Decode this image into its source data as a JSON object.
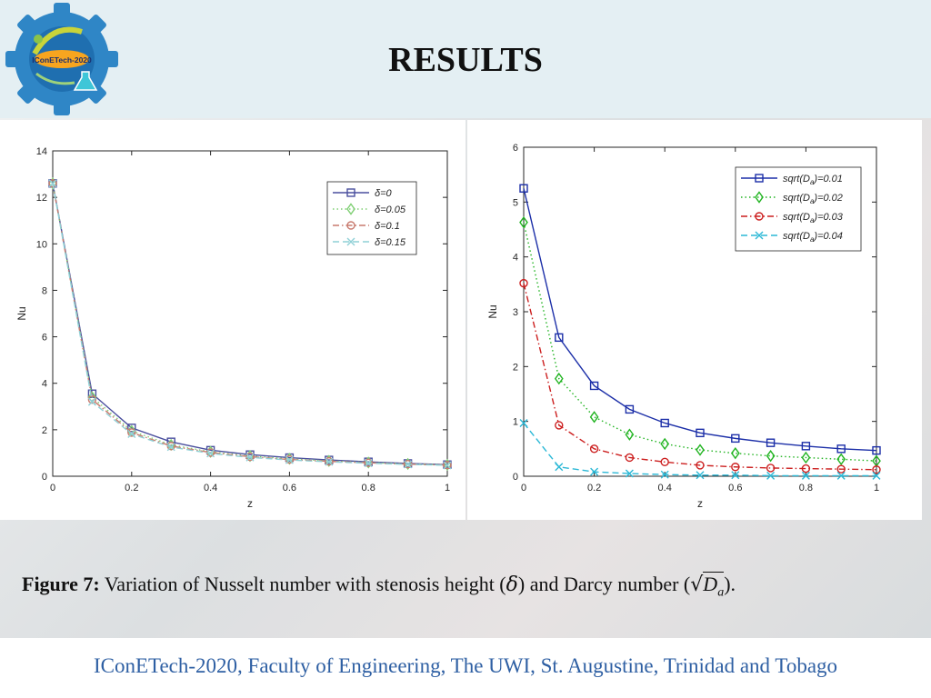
{
  "header": {
    "title": "RESULTS",
    "logo_text": "IConETech-2020"
  },
  "caption": {
    "label": "Figure 7:",
    "text_before": "Variation of Nusselt number with stenosis height (",
    "delta_symbol": "δ",
    "text_middle": ") and Darcy number (",
    "darcy_symbol": "D",
    "darcy_sub": "a",
    "text_after": ")."
  },
  "footer": {
    "text": "IConETech-2020, Faculty of Engineering, The UWI, St. Augustine, Trinidad and Tobago"
  },
  "colors": {
    "header_bg": "#e4eff3",
    "footer_text": "#2e5fa3",
    "series_blue": "#1c2fa8",
    "series_green": "#22b422",
    "series_red": "#cc1f1f",
    "series_cyan": "#2bb8d6"
  },
  "chart_data": [
    {
      "type": "line",
      "title": "",
      "xlabel": "z",
      "ylabel": "Nu",
      "xlim": [
        0,
        1
      ],
      "ylim": [
        0,
        14
      ],
      "xticks": [
        0,
        0.2,
        0.4,
        0.6,
        0.8,
        1
      ],
      "xtick_labels": [
        "0",
        "0.2",
        "0.4",
        "0.6",
        "0.8",
        "1"
      ],
      "yticks": [
        0,
        2,
        4,
        6,
        8,
        10,
        12,
        14
      ],
      "ytick_labels": [
        "0",
        "2",
        "4",
        "6",
        "8",
        "10",
        "12",
        "14"
      ],
      "legend_position": "top-right",
      "x": [
        0,
        0.1,
        0.2,
        0.3,
        0.4,
        0.5,
        0.6,
        0.7,
        0.8,
        0.9,
        1.0
      ],
      "series": [
        {
          "name": "δ=0",
          "color": "#4a4f9e",
          "marker": "square",
          "dash": "solid",
          "values": [
            12.6,
            3.55,
            2.08,
            1.48,
            1.12,
            0.93,
            0.8,
            0.7,
            0.62,
            0.55,
            0.5
          ]
        },
        {
          "name": "δ=0.05",
          "color": "#7fcf73",
          "marker": "diamond",
          "dash": "dotted",
          "values": [
            12.6,
            3.4,
            1.95,
            1.35,
            1.05,
            0.87,
            0.75,
            0.66,
            0.59,
            0.53,
            0.49
          ]
        },
        {
          "name": "δ=0.1",
          "color": "#c87a6e",
          "marker": "circle",
          "dash": "dashdot",
          "values": [
            12.6,
            3.3,
            1.88,
            1.3,
            1.02,
            0.84,
            0.72,
            0.64,
            0.58,
            0.52,
            0.48
          ]
        },
        {
          "name": "δ=0.15",
          "color": "#8fd0d6",
          "marker": "x",
          "dash": "dashed",
          "values": [
            12.6,
            3.2,
            1.82,
            1.26,
            0.98,
            0.81,
            0.7,
            0.62,
            0.56,
            0.51,
            0.47
          ]
        }
      ]
    },
    {
      "type": "line",
      "title": "",
      "xlabel": "z",
      "ylabel": "Nu",
      "xlim": [
        0,
        1
      ],
      "ylim": [
        0,
        6
      ],
      "xticks": [
        0,
        0.2,
        0.4,
        0.6,
        0.8,
        1
      ],
      "xtick_labels": [
        "0",
        "0.2",
        "0.4",
        "0.6",
        "0.8",
        "1"
      ],
      "yticks": [
        0,
        1,
        2,
        3,
        4,
        5,
        6
      ],
      "ytick_labels": [
        "0",
        "1",
        "2",
        "3",
        "4",
        "5",
        "6"
      ],
      "legend_position": "top-right",
      "x": [
        0,
        0.1,
        0.2,
        0.3,
        0.4,
        0.5,
        0.6,
        0.7,
        0.8,
        0.9,
        1.0
      ],
      "series": [
        {
          "name": "sqrt(Da)=0.01",
          "name_main": "sqrt(D",
          "name_sub": "a",
          "name_end": ")=0.01",
          "color": "#1c2fa8",
          "marker": "square",
          "dash": "solid",
          "values": [
            5.25,
            2.53,
            1.65,
            1.22,
            0.97,
            0.79,
            0.69,
            0.61,
            0.55,
            0.5,
            0.47
          ]
        },
        {
          "name": "sqrt(Da)=0.02",
          "name_main": "sqrt(D",
          "name_sub": "a",
          "name_end": ")=0.02",
          "color": "#22b422",
          "marker": "diamond",
          "dash": "dotted",
          "values": [
            4.63,
            1.78,
            1.08,
            0.76,
            0.59,
            0.48,
            0.42,
            0.37,
            0.34,
            0.31,
            0.28
          ]
        },
        {
          "name": "sqrt(Da)=0.03",
          "name_main": "sqrt(D",
          "name_sub": "a",
          "name_end": ")=0.03",
          "color": "#cc1f1f",
          "marker": "circle",
          "dash": "dashdot",
          "values": [
            3.52,
            0.93,
            0.5,
            0.34,
            0.26,
            0.2,
            0.17,
            0.15,
            0.14,
            0.13,
            0.12
          ]
        },
        {
          "name": "sqrt(Da)=0.04",
          "name_main": "sqrt(D",
          "name_sub": "a",
          "name_end": ")=0.04",
          "color": "#2bb8d6",
          "marker": "x",
          "dash": "dashed",
          "values": [
            0.97,
            0.17,
            0.08,
            0.05,
            0.03,
            0.02,
            0.02,
            0.01,
            0.01,
            0.01,
            0.01
          ]
        }
      ]
    }
  ]
}
